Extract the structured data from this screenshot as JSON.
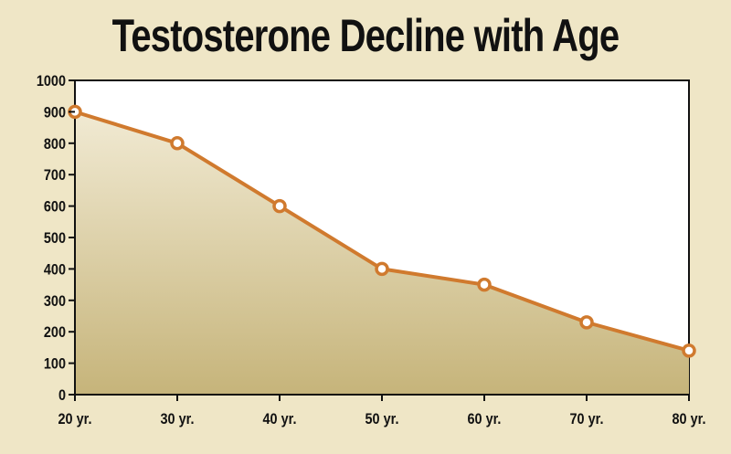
{
  "chart_data": {
    "type": "line",
    "title": "Testosterone Decline with Age",
    "xlabel": "",
    "ylabel": "",
    "categories": [
      "20 yr.",
      "30 yr.",
      "40 yr.",
      "50 yr.",
      "60 yr.",
      "70 yr.",
      "80 yr."
    ],
    "values": [
      900,
      800,
      600,
      400,
      350,
      230,
      140
    ],
    "ylim": [
      0,
      1000
    ],
    "yticks": [
      0,
      100,
      200,
      300,
      400,
      500,
      600,
      700,
      800,
      900,
      1000
    ],
    "grid": false,
    "legend": "none",
    "colors": {
      "line": "#d07a2e",
      "marker_fill": "#ffffff",
      "area_top": "#f1ead3",
      "area_bottom": "#c6b47a",
      "plot_background": "#ffffff",
      "page_background": "#efe6c6"
    }
  }
}
